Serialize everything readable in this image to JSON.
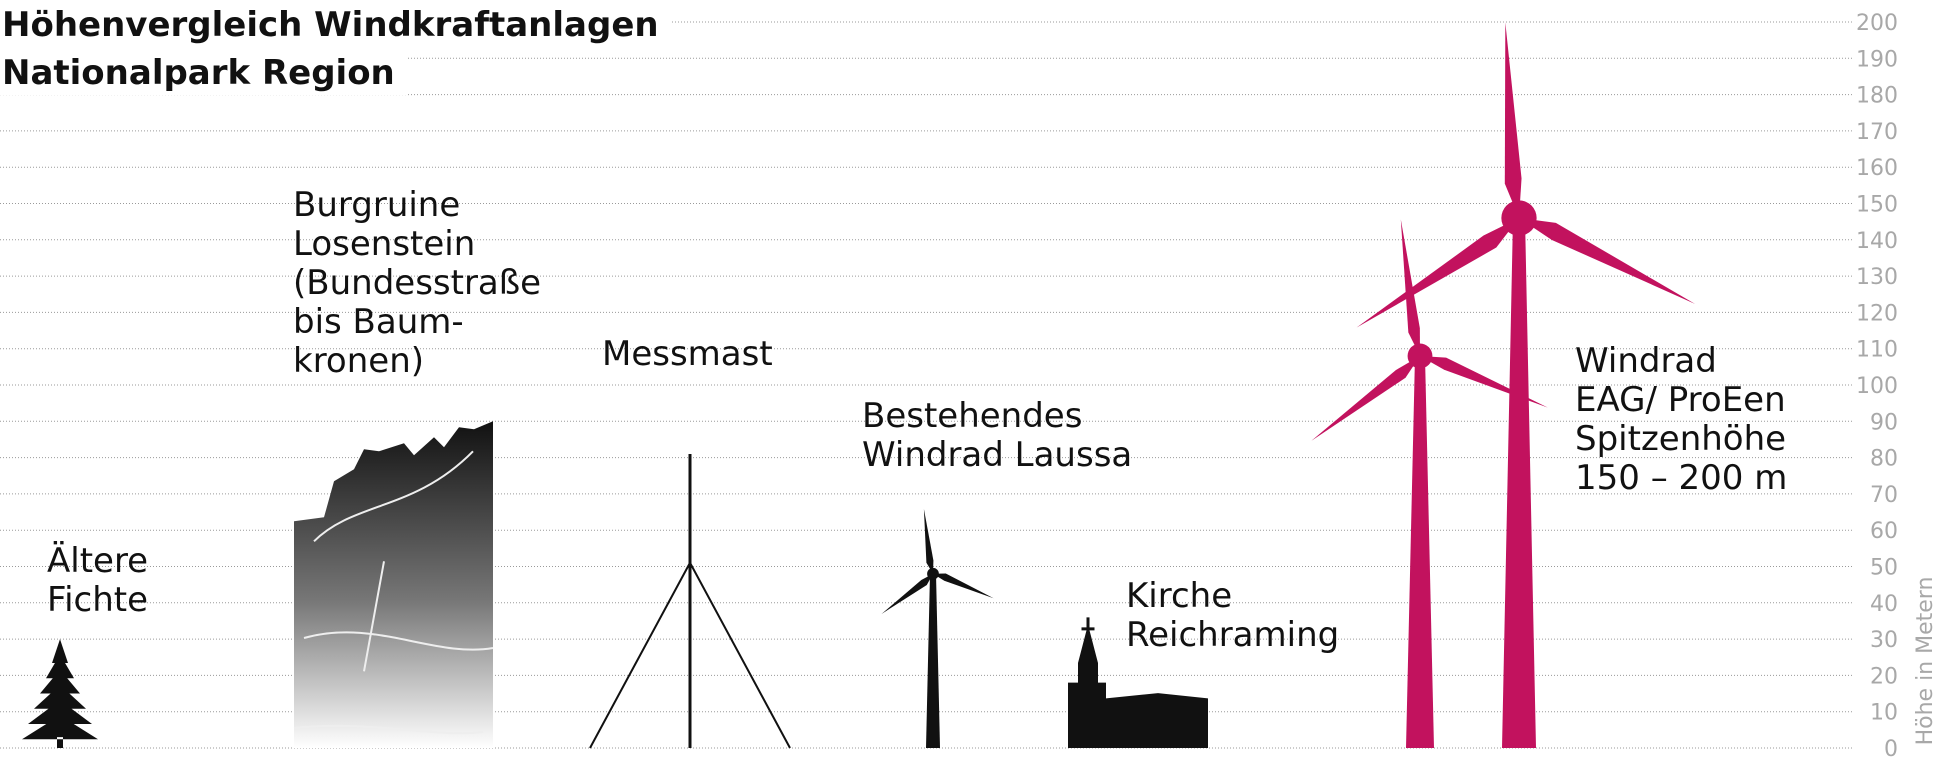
{
  "chart_data": {
    "type": "pictogram",
    "title": [
      "Höhenvergleich Windkraftanlagen",
      "Nationalpark Region"
    ],
    "y_label": "Höhe in Metern",
    "ylim": [
      0,
      200
    ],
    "yticks": [
      0,
      10,
      20,
      30,
      40,
      50,
      60,
      70,
      80,
      90,
      100,
      110,
      120,
      130,
      140,
      150,
      160,
      170,
      180,
      190,
      200
    ],
    "grid": true,
    "items": [
      {
        "label": [
          "Ältere",
          "Fichte"
        ],
        "value": 30,
        "color": "#111111"
      },
      {
        "label": [
          "Burgruine",
          "Losenstein",
          "(Bundesstraße",
          "bis Baum-",
          "kronen)"
        ],
        "value": 90,
        "color": "#111111"
      },
      {
        "label": [
          "Messmast"
        ],
        "value": 81,
        "color": "#111111"
      },
      {
        "label": [
          "Bestehendes",
          "Windrad Laussa"
        ],
        "value": 66,
        "hub": 48,
        "color": "#111111"
      },
      {
        "label": [
          "Kirche",
          "Reichraming"
        ],
        "value": 36,
        "color": "#111111"
      },
      {
        "value": 146,
        "hub": 108,
        "color": "#c2125e"
      },
      {
        "label": [
          "Windrad",
          "EAG/ ProEen",
          "Spitzenhöhe",
          "150 – 200 m"
        ],
        "value": 200,
        "hub": 146,
        "color": "#c2125e"
      }
    ]
  }
}
